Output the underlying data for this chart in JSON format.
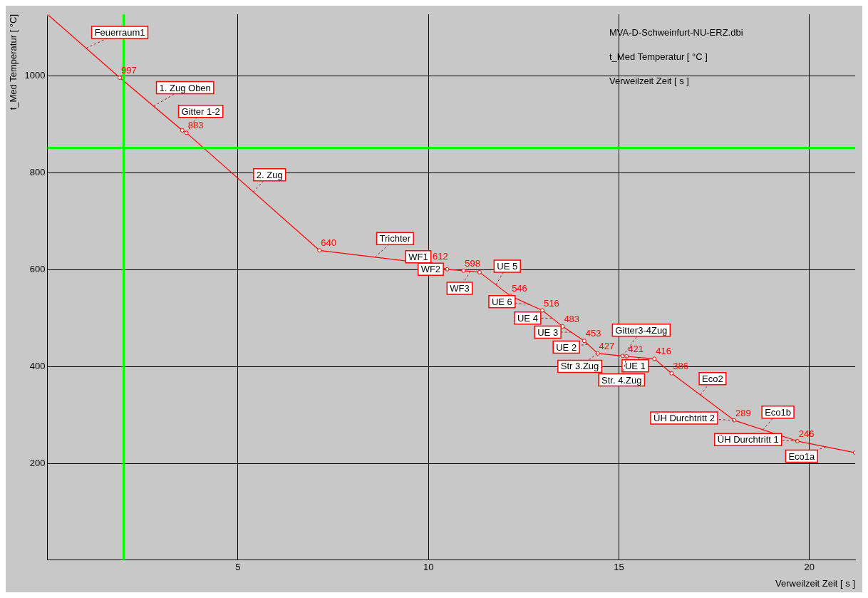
{
  "chart_data": {
    "type": "line",
    "xlabel": "Verweilzeit Zeit [ s ]",
    "ylabel": "t_Med Temperatur [ °C]",
    "xlim": [
      0,
      21.2
    ],
    "ylim": [
      0,
      1128
    ],
    "xticks": [
      5,
      10,
      15,
      20
    ],
    "yticks": [
      200,
      400,
      600,
      800,
      1000
    ],
    "grid": true,
    "legend": false,
    "marker": "circle",
    "line_style": "solid",
    "series": [
      {
        "color": "#ff0000",
        "x": [
          0,
          1.9,
          3.54,
          3.65,
          7.14,
          10.07,
          10.49,
          10.92,
          11.34,
          12.15,
          12.99,
          13.52,
          14.09,
          14.44,
          15.1,
          15.2,
          15.93,
          16.38,
          18.02,
          19.68,
          21.2
        ],
        "values": [
          1128,
          997,
          888,
          883,
          640,
          612,
          601,
          598,
          595,
          546,
          516,
          483,
          453,
          427,
          422,
          421,
          416,
          386,
          289,
          246,
          222
        ],
        "value_labels": [
          null,
          "997",
          null,
          "883",
          "640",
          "612",
          null,
          "598",
          null,
          "546",
          "516",
          "483",
          "453",
          "427",
          null,
          "421",
          "416",
          "386",
          "289",
          "246",
          null
        ]
      }
    ],
    "ref_lines": [
      {
        "axis": "x",
        "value": 2.0,
        "color": "#00ff00"
      },
      {
        "axis": "y",
        "value": 852,
        "color": "#00ff00"
      }
    ],
    "annotations": [
      "MVA-D-Schweinfurt-NU-ERZ.dbi",
      "t_Med Temperatur [ °C ]",
      "Verweilzeit Zeit [ s ]",
      {
        "text": "Feuerraum1",
        "x": 1.02,
        "y": 1058
      },
      {
        "text": "1. Zug Oben",
        "x": 2.79,
        "y": 938
      },
      {
        "text": "Gitter 1-2",
        "x": 3.65,
        "y": 883
      },
      {
        "text": "2. Zug",
        "x": 5.4,
        "y": 761
      },
      {
        "text": "Trichter",
        "x": 8.6,
        "y": 626
      },
      {
        "text": "WF1",
        "x": 10.07,
        "y": 612
      },
      {
        "text": "WF2",
        "x": 10.49,
        "y": 601
      },
      {
        "text": "WF3",
        "x": 11.1,
        "y": 597
      },
      {
        "text": "UE 5",
        "x": 11.77,
        "y": 569
      },
      {
        "text": "UE 6",
        "x": 12.66,
        "y": 528
      },
      {
        "text": "UE 4",
        "x": 13.24,
        "y": 500
      },
      {
        "text": "UE 3",
        "x": 13.75,
        "y": 471
      },
      {
        "text": "UE 2",
        "x": 14.18,
        "y": 446
      },
      {
        "text": "Gitter3-4Zug",
        "x": 15.1,
        "y": 422
      },
      {
        "text": "Str 3.Zug",
        "x": 14.44,
        "y": 427
      },
      {
        "text": "UE 1",
        "x": 15.54,
        "y": 419
      },
      {
        "text": "Str. 4.Zug",
        "x": 15.2,
        "y": 421
      },
      {
        "text": "Eco2",
        "x": 17.14,
        "y": 341
      },
      {
        "text": "ÜH Durchtritt 2",
        "x": 18.02,
        "y": 289
      },
      {
        "text": "Eco1b",
        "x": 18.78,
        "y": 269
      },
      {
        "text": "ÜH Durchtritt 1",
        "x": 19.68,
        "y": 246
      },
      {
        "text": "Eco1a",
        "x": 20.43,
        "y": 234
      }
    ]
  }
}
